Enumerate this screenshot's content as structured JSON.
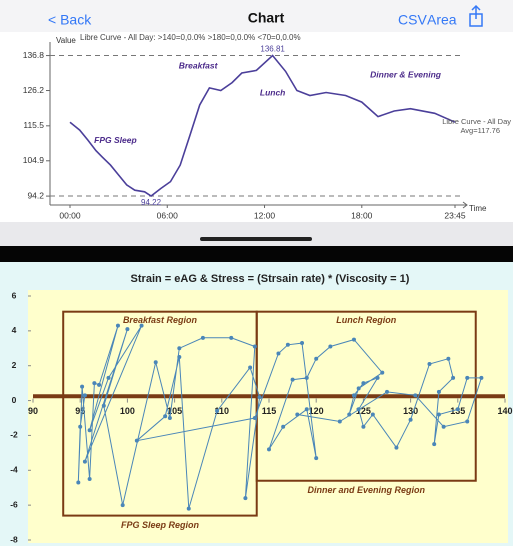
{
  "nav": {
    "back": "< Back",
    "title": "Chart",
    "actions": [
      "CSV",
      "Area"
    ]
  },
  "chart_data": [
    {
      "type": "line",
      "title": "Libre Curve - All Day: >140=0,0.0% >180=0,0.0% <70=0,0.0%",
      "y_label": "Value",
      "x_label": "Time",
      "x": [
        0,
        0.6,
        1.1,
        1.6,
        2.0,
        2.5,
        3.0,
        3.5,
        4.0,
        4.6,
        5.0,
        5.6,
        6.2,
        6.8,
        7.4,
        8.0,
        8.6,
        9.3,
        10.0,
        10.6,
        11.5,
        12.5,
        13.3,
        14.0,
        14.8,
        15.8,
        17.0,
        18.0,
        19.0,
        20.0,
        21.0,
        22.5,
        23.75
      ],
      "series": [
        {
          "name": "Libre Curve - All Day",
          "color": "#4b3f9a",
          "values": [
            116.6,
            114.2,
            111.2,
            108,
            106,
            103.6,
            100.6,
            97.6,
            96,
            95.5,
            94.22,
            96.5,
            98.6,
            103.6,
            112.7,
            121.8,
            127,
            126.2,
            128.6,
            131.5,
            132.3,
            136.81,
            132,
            126.2,
            124.7,
            125.6,
            124.7,
            122.7,
            118.3,
            120,
            120.7,
            119.3,
            116.6
          ]
        }
      ],
      "end_note": "Avg=117.76",
      "label_min_max": true,
      "min_max_lines": true,
      "annotations": [
        {
          "text": "FPG Sleep",
          "x": 2.8,
          "y": 111
        },
        {
          "text": "Breakfast",
          "x": 7.9,
          "y": 133.5
        },
        {
          "text": "Lunch",
          "x": 12.5,
          "y": 125.3
        },
        {
          "text": "Dinner & Evening",
          "x": 20.7,
          "y": 130.8
        }
      ],
      "xlim": [
        0,
        23.75
      ],
      "xticks": [
        {
          "value": 0,
          "label": "00:00"
        },
        {
          "value": 6,
          "label": "06:00"
        },
        {
          "value": 12,
          "label": "12:00"
        },
        {
          "value": 18,
          "label": "18:00"
        },
        {
          "value": 23.75,
          "label": "23:45"
        }
      ],
      "ylim": [
        91.5,
        140
      ],
      "yticks": [
        94.2,
        104.9,
        115.5,
        126.2,
        136.8
      ]
    },
    {
      "type": "scatter",
      "title": "Strain = eAG & Stress = (Strsain rate) * (Viscosity = 1)",
      "color": "#4a86b8",
      "connect": true,
      "x": [
        95.5,
        95,
        94.8,
        95.2,
        96,
        96.5,
        97,
        99,
        96,
        98,
        101.5,
        95.5,
        100,
        97.5,
        99.5,
        103,
        104.5,
        105.5,
        108,
        111,
        113.5,
        112.5,
        114,
        113,
        109.5,
        106.5,
        105.5,
        104,
        101,
        113.5,
        116,
        117,
        118.5,
        120,
        119,
        116.5,
        115,
        117.5,
        119,
        120,
        121.5,
        124,
        127,
        124.5,
        123.5,
        124,
        125,
        126.5,
        124.5,
        125,
        126,
        128.5,
        130,
        132,
        134,
        134.5,
        133,
        132.5,
        133,
        135,
        136,
        137.5,
        136,
        133.5,
        130.5,
        127.5,
        122.5,
        118
      ],
      "values": [
        0.3,
        -1.5,
        -4.7,
        0.8,
        -4.5,
        1,
        0.9,
        4.3,
        -1.7,
        1.3,
        4.3,
        -3.5,
        4.1,
        -0.3,
        -6,
        2.2,
        -1,
        3,
        3.6,
        3.6,
        3.1,
        -5.6,
        0.2,
        1.9,
        -0.6,
        -6.2,
        2.5,
        -0.9,
        -2.3,
        -1,
        2.7,
        3.2,
        3.3,
        -3.3,
        -0.5,
        -1.5,
        -2.8,
        1.2,
        1.3,
        2.4,
        3.1,
        3.5,
        1.6,
        0.7,
        -0.8,
        0.3,
        1,
        1.3,
        -0.5,
        -1.5,
        -0.8,
        -2.7,
        -1.1,
        2.1,
        2.4,
        1.3,
        0.5,
        -2.5,
        -0.8,
        -0.5,
        1.3,
        1.3,
        -1.2,
        -1.5,
        0.3,
        0.5,
        -1.2,
        -0.8
      ],
      "hline": 0.25,
      "hline_color": "#7a3b14",
      "regions": [
        {
          "top_label": "Breakfast Region",
          "bottom_label": "FPG Sleep Region",
          "x": [
            93.2,
            113.7
          ],
          "y": [
            -6.6,
            5.1
          ]
        },
        {
          "top_label": "Lunch Region",
          "bottom_label": "Dinner and Evening Region",
          "x": [
            113.7,
            136.9
          ],
          "y": [
            -4.6,
            5.1
          ]
        }
      ],
      "region_color": "#7a3b14",
      "xlim": [
        90,
        140
      ],
      "xticks": [
        90,
        95,
        100,
        105,
        110,
        115,
        120,
        125,
        130,
        135,
        140
      ],
      "ylim": [
        -8,
        6
      ],
      "yticks": [
        6,
        4,
        2,
        0,
        -2,
        -4,
        -6,
        -8
      ]
    }
  ]
}
